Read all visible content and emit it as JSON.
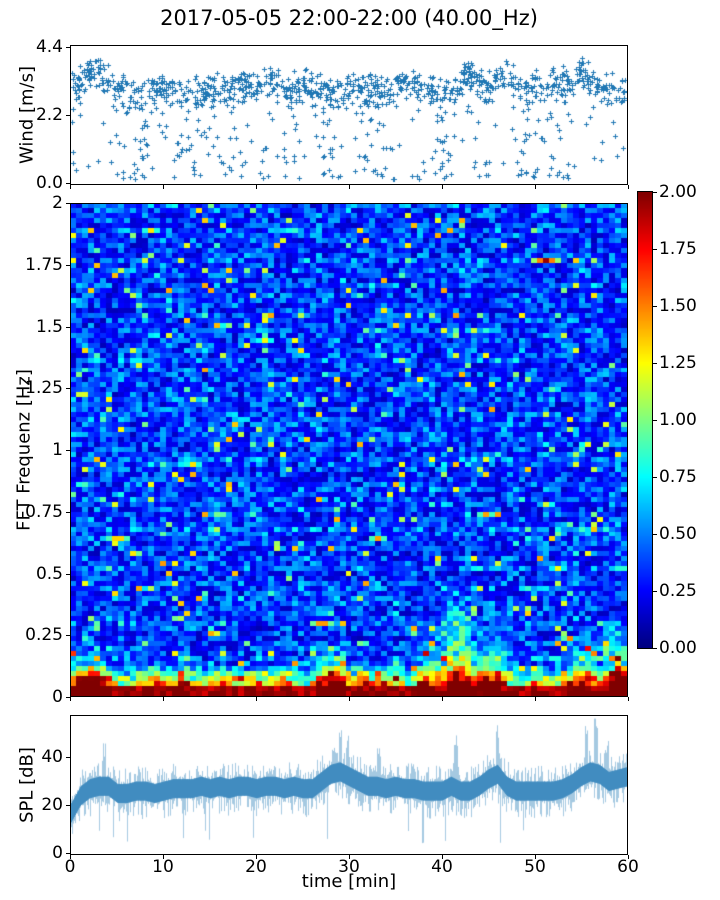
{
  "title": "2017-05-05 22:00-22:00 (40.00_Hz)",
  "colors": {
    "series_blue": "#1f77b4",
    "frame": "#000000",
    "background": "#ffffff"
  },
  "xaxis": {
    "label": "time [min]",
    "tick_labels": [
      "0",
      "10",
      "20",
      "30",
      "40",
      "50",
      "60"
    ],
    "tick_values": [
      0,
      10,
      20,
      30,
      40,
      50,
      60
    ],
    "range": [
      0,
      60
    ]
  },
  "chart_data": [
    {
      "id": "wind",
      "type": "scatter",
      "title": "",
      "ylabel": "Wind [m/s]",
      "ytick_labels": [
        "0.0",
        "2.2",
        "4.4"
      ],
      "ytick_values": [
        0,
        2.2,
        4.4
      ],
      "ylim": [
        0,
        4.4
      ],
      "xlim": [
        0,
        60
      ],
      "marker": "plus",
      "color": "#1f77b4",
      "n_points": 1250,
      "seed": 7,
      "minute_mean": [
        3.0,
        3.2,
        3.6,
        3.5,
        3.3,
        3.1,
        3.0,
        2.9,
        2.9,
        3.0,
        3.1,
        3.0,
        2.9,
        2.9,
        3.0,
        3.0,
        3.0,
        3.0,
        3.1,
        3.2,
        3.1,
        3.2,
        3.2,
        3.1,
        3.0,
        3.2,
        3.2,
        3.0,
        2.9,
        2.9,
        3.1,
        3.0,
        3.0,
        3.1,
        3.0,
        3.0,
        3.2,
        3.3,
        3.2,
        3.1,
        3.0,
        3.0,
        3.3,
        3.5,
        3.2,
        3.1,
        3.3,
        3.4,
        3.1,
        3.0,
        3.1,
        3.1,
        3.2,
        3.1,
        3.2,
        3.6,
        3.4,
        3.1,
        3.0,
        3.0,
        2.9
      ],
      "minute_dip": [
        0.5,
        0.3,
        0.1,
        0.15,
        0.2,
        0.3,
        0.4,
        0.7,
        0.8,
        0.4,
        0.2,
        0.6,
        0.9,
        0.8,
        0.4,
        0.3,
        0.5,
        0.3,
        0.5,
        0.2,
        0.2,
        0.3,
        0.3,
        0.6,
        0.7,
        0.2,
        0.3,
        0.8,
        0.9,
        0.8,
        0.3,
        0.5,
        0.6,
        0.4,
        0.7,
        0.6,
        0.3,
        0.4,
        0.6,
        0.6,
        0.8,
        0.8,
        0.3,
        0.2,
        0.5,
        0.6,
        0.3,
        0.3,
        0.7,
        0.7,
        0.4,
        0.4,
        0.5,
        0.6,
        0.3,
        0.2,
        0.4,
        0.6,
        0.4,
        0.6,
        0.5
      ]
    },
    {
      "id": "spectrogram",
      "type": "heatmap",
      "ylabel": "FFT Frequenz [Hz]",
      "ytick_labels": [
        "0",
        "0.25",
        "0.5",
        "0.75",
        "1",
        "1.25",
        "1.5",
        "1.75",
        "2"
      ],
      "ytick_values": [
        0,
        0.25,
        0.5,
        0.75,
        1,
        1.25,
        1.5,
        1.75,
        2
      ],
      "ylim": [
        0,
        2
      ],
      "xlim": [
        0,
        60
      ],
      "colormap": "jet",
      "clim": [
        0,
        2
      ],
      "grid": {
        "rows": 99,
        "cols": 93
      },
      "seed": 3,
      "hot_columns": [
        {
          "t": 1.0,
          "s": 1.0,
          "fmax": 0.25
        },
        {
          "t": 2.5,
          "s": 0.9,
          "fmax": 0.2
        },
        {
          "t": 4.0,
          "s": 0.7,
          "fmax": 0.15
        },
        {
          "t": 8.5,
          "s": 0.6,
          "fmax": 0.15
        },
        {
          "t": 12.0,
          "s": 0.6,
          "fmax": 0.18
        },
        {
          "t": 16.5,
          "s": 0.5,
          "fmax": 0.12
        },
        {
          "t": 20.0,
          "s": 0.5,
          "fmax": 0.12
        },
        {
          "t": 23.0,
          "s": 0.6,
          "fmax": 0.15
        },
        {
          "t": 27.5,
          "s": 0.8,
          "fmax": 0.22
        },
        {
          "t": 29.0,
          "s": 0.9,
          "fmax": 0.25
        },
        {
          "t": 31.5,
          "s": 0.6,
          "fmax": 0.15
        },
        {
          "t": 34.0,
          "s": 0.5,
          "fmax": 0.12
        },
        {
          "t": 38.5,
          "s": 0.9,
          "fmax": 0.3
        },
        {
          "t": 41.0,
          "s": 1.0,
          "fmax": 0.5
        },
        {
          "t": 42.5,
          "s": 0.9,
          "fmax": 0.45
        },
        {
          "t": 44.5,
          "s": 0.8,
          "fmax": 0.3
        },
        {
          "t": 46.0,
          "s": 0.9,
          "fmax": 0.35
        },
        {
          "t": 50.0,
          "s": 0.5,
          "fmax": 0.12
        },
        {
          "t": 54.5,
          "s": 0.8,
          "fmax": 0.25
        },
        {
          "t": 56.0,
          "s": 0.8,
          "fmax": 0.3
        },
        {
          "t": 58.5,
          "s": 0.9,
          "fmax": 0.35
        },
        {
          "t": 59.5,
          "s": 0.8,
          "fmax": 0.3
        }
      ],
      "streaks": [
        {
          "t": 51.5,
          "f": 1.78,
          "len": 5,
          "v": 1.5
        },
        {
          "t": 9.0,
          "f": 1.9,
          "len": 3,
          "v": 1.0
        },
        {
          "t": 21.0,
          "f": 1.45,
          "len": 3,
          "v": 0.95
        },
        {
          "t": 13.0,
          "f": 0.95,
          "len": 3,
          "v": 1.0
        },
        {
          "t": 33.0,
          "f": 0.65,
          "len": 3,
          "v": 1.1
        },
        {
          "t": 5.0,
          "f": 0.65,
          "len": 4,
          "v": 1.2
        },
        {
          "t": 45.0,
          "f": 0.75,
          "len": 3,
          "v": 1.1
        },
        {
          "t": 27.0,
          "f": 0.3,
          "len": 4,
          "v": 1.3
        }
      ],
      "colorbar": {
        "tick_labels": [
          "0.00",
          "0.25",
          "0.50",
          "0.75",
          "1.00",
          "1.25",
          "1.50",
          "1.75",
          "2.00"
        ],
        "tick_values": [
          0,
          0.25,
          0.5,
          0.75,
          1,
          1.25,
          1.5,
          1.75,
          2
        ],
        "range": [
          0,
          2
        ]
      }
    },
    {
      "id": "spl",
      "type": "line",
      "ylabel": "SPL [dB]",
      "ytick_labels": [
        "0",
        "20",
        "40"
      ],
      "ytick_values": [
        0,
        20,
        40
      ],
      "ylim": [
        0,
        57
      ],
      "xlim": [
        0,
        60
      ],
      "color": "#1f77b4",
      "seed": 11,
      "minute_mean": [
        17,
        24,
        27,
        28,
        28,
        25,
        25,
        26,
        26,
        25,
        26,
        27,
        27,
        27,
        28,
        27,
        28,
        27,
        28,
        28,
        27,
        28,
        28,
        27,
        28,
        27,
        27,
        30,
        33,
        34,
        32,
        30,
        28,
        28,
        27,
        28,
        27,
        27,
        26,
        26,
        26,
        28,
        26,
        26,
        28,
        31,
        33,
        28,
        26,
        26,
        26,
        26,
        26,
        27,
        29,
        32,
        34,
        33,
        30,
        31,
        32
      ],
      "spikes": [
        {
          "t": 3.5,
          "up": 8
        },
        {
          "t": 29.0,
          "up": 13
        },
        {
          "t": 29.8,
          "up": 10
        },
        {
          "t": 33.2,
          "up": 8
        },
        {
          "t": 41.5,
          "up": 19
        },
        {
          "t": 46.0,
          "up": 15
        },
        {
          "t": 55.6,
          "up": 13
        },
        {
          "t": 56.6,
          "up": 16
        },
        {
          "t": 57.8,
          "up": 10
        }
      ]
    }
  ]
}
